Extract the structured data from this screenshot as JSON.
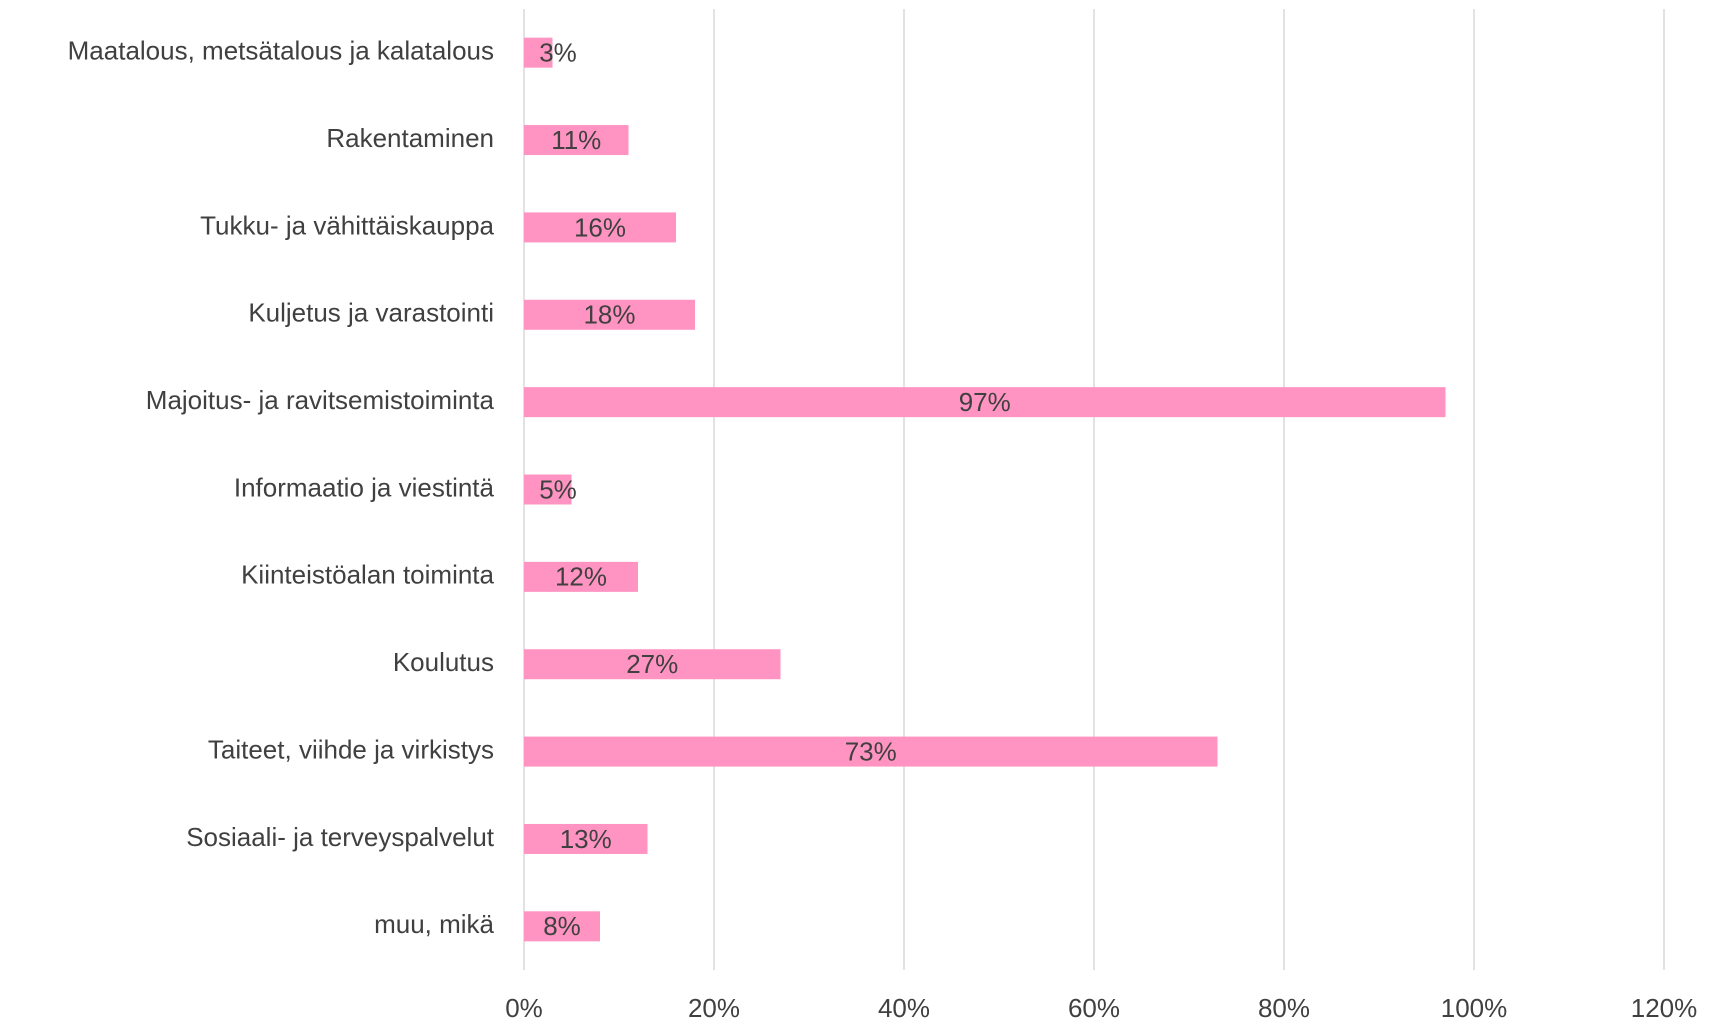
{
  "chart_data": {
    "type": "bar",
    "orientation": "horizontal",
    "categories": [
      "Maatalous, metsätalous ja kalatalous",
      "Rakentaminen",
      "Tukku- ja vähittäiskauppa",
      "Kuljetus ja varastointi",
      "Majoitus- ja ravitsemistoiminta",
      "Informaatio ja viestintä",
      "Kiinteistöalan toiminta",
      "Koulutus",
      "Taiteet, viihde ja virkistys",
      "Sosiaali- ja terveyspalvelut",
      "muu, mikä"
    ],
    "values": [
      3,
      11,
      16,
      18,
      97,
      5,
      12,
      27,
      73,
      13,
      8
    ],
    "value_labels": [
      "3%",
      "11%",
      "16%",
      "18%",
      "97%",
      "5%",
      "12%",
      "27%",
      "73%",
      "13%",
      "8%"
    ],
    "color": "#ff94c2",
    "xlim": [
      0,
      120
    ],
    "xticks": [
      {
        "value": 0,
        "label": "0%"
      },
      {
        "value": 20,
        "label": "20%"
      },
      {
        "value": 40,
        "label": "40%"
      },
      {
        "value": 60,
        "label": "60%"
      },
      {
        "value": 80,
        "label": "80%"
      },
      {
        "value": 100,
        "label": "100%"
      },
      {
        "value": 120,
        "label": "120%"
      }
    ],
    "grid": true
  }
}
